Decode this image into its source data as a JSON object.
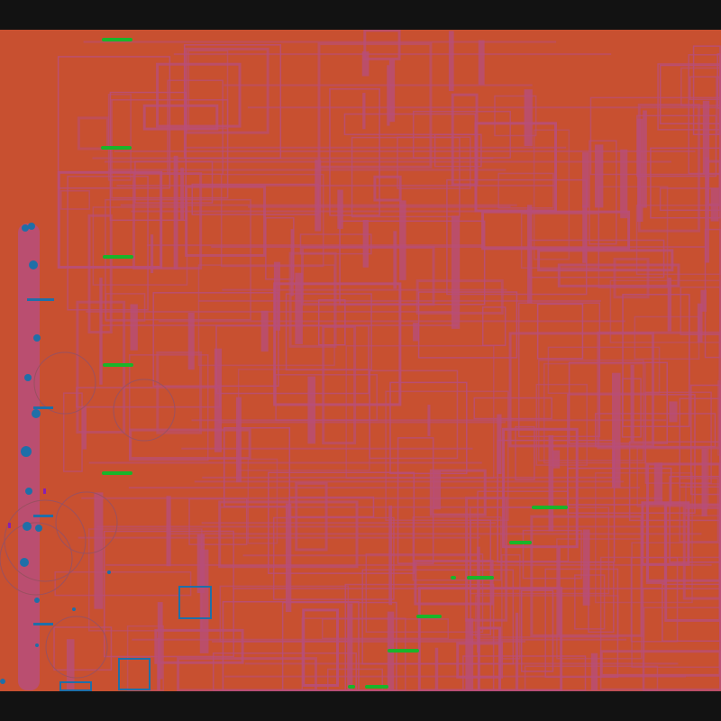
{
  "colors": {
    "letterbox": "#121212",
    "background": "#c85030",
    "lines": "#b84e78",
    "green_marks": "#19b52a",
    "blue_marks": "#1f6fa8",
    "purple_marks": "#8a1fb0",
    "outline_circles": "#9a5060"
  }
}
